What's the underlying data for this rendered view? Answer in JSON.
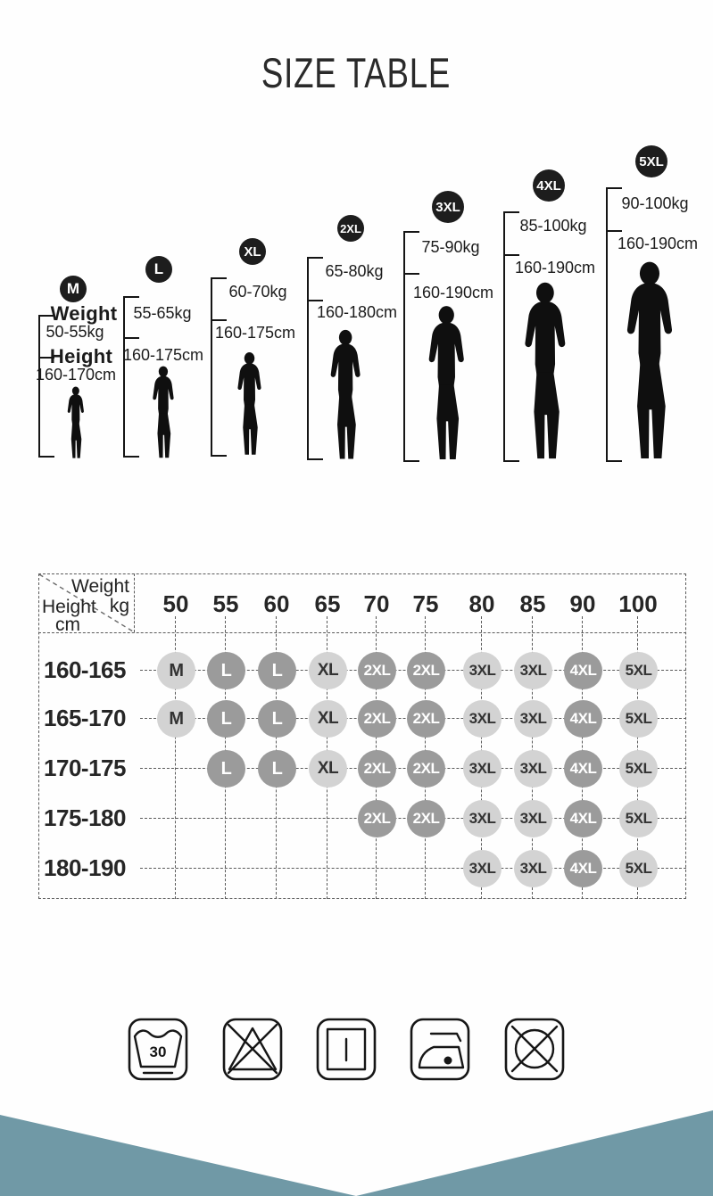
{
  "title": "SIZE TABLE",
  "size_guide": {
    "weight_label": "Weight",
    "height_label": "Height",
    "sizes": [
      {
        "label": "M",
        "weight": "50-55kg",
        "height": "160-170cm"
      },
      {
        "label": "L",
        "weight": "55-65kg",
        "height": "160-175cm"
      },
      {
        "label": "XL",
        "weight": "60-70kg",
        "height": "160-175cm"
      },
      {
        "label": "2XL",
        "weight": "65-80kg",
        "height": "160-180cm"
      },
      {
        "label": "3XL",
        "weight": "75-90kg",
        "height": "160-190cm"
      },
      {
        "label": "4XL",
        "weight": "85-100kg",
        "height": "160-190cm"
      },
      {
        "label": "5XL",
        "weight": "90-100kg",
        "height": "160-190cm"
      }
    ]
  },
  "chart_data": {
    "type": "table",
    "title": "SIZE TABLE",
    "corner_x_label": "Weight",
    "corner_x_unit": "kg",
    "corner_y_label": "Height",
    "corner_y_unit": "cm",
    "columns_weight_kg": [
      "50",
      "55",
      "60",
      "65",
      "70",
      "75",
      "80",
      "85",
      "90",
      "100"
    ],
    "rows_height_cm": [
      "160-165",
      "165-170",
      "170-175",
      "175-180",
      "180-190"
    ],
    "cells": [
      [
        "M",
        "L",
        "L",
        "XL",
        "2XL",
        "2XL",
        "3XL",
        "3XL",
        "4XL",
        "5XL"
      ],
      [
        "M",
        "L",
        "L",
        "XL",
        "2XL",
        "2XL",
        "3XL",
        "3XL",
        "4XL",
        "5XL"
      ],
      [
        "",
        "L",
        "L",
        "XL",
        "2XL",
        "2XL",
        "3XL",
        "3XL",
        "4XL",
        "5XL"
      ],
      [
        "",
        "",
        "",
        "",
        "2XL",
        "2XL",
        "3XL",
        "3XL",
        "4XL",
        "5XL"
      ],
      [
        "",
        "",
        "",
        "",
        "",
        "",
        "3XL",
        "3XL",
        "4XL",
        "5XL"
      ]
    ]
  },
  "size_color_map": {
    "M": "light",
    "L": "dark",
    "XL": "light",
    "2XL": "dark",
    "3XL": "light",
    "4XL": "dark",
    "5XL": "light"
  },
  "care": {
    "wash_temp": "30",
    "icons": [
      "machine-wash-30",
      "do-not-bleach",
      "line-dry",
      "iron-one-dot",
      "do-not-tumble-dry"
    ]
  },
  "colors": {
    "circle_light": "#d3d3d3",
    "circle_dark": "#9b9b9b",
    "circle_text_dark": "#333333",
    "circle_text_light": "#ffffff",
    "badge_black": "#1d1d1d",
    "accent_teal": "#7099a6"
  }
}
